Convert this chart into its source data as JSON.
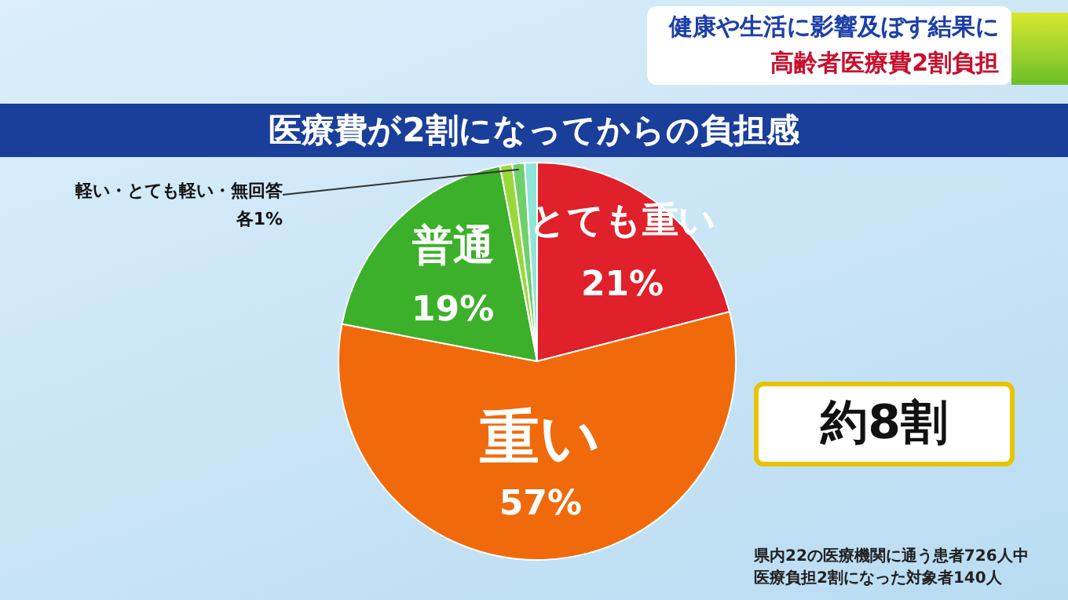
{
  "chart_data": {
    "type": "pie",
    "title": "医療費が2割になってからの負担感",
    "categories": [
      "とても重い",
      "重い",
      "普通",
      null,
      null,
      null
    ],
    "values": [
      21,
      57,
      19,
      1,
      1,
      1
    ],
    "colors": [
      "#e0202a",
      "#f06a0c",
      "#3cb02a",
      "#9ad83a",
      "#6fd06a",
      "#8ee6d8"
    ],
    "value_labels": [
      "21%",
      "57%",
      "19%",
      null,
      null,
      null
    ],
    "annotations": [
      "健康や生活に影響及ぼす結果に",
      "高齢者医療費2割負担",
      "約8割",
      "軽い・とても軽い・無回答",
      "各1%",
      "県内22の医療機関に通う患者726人中",
      "医療負担2割になった対象者140人"
    ]
  }
}
